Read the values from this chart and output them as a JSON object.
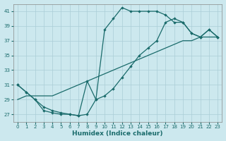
{
  "xlabel": "Humidex (Indice chaleur)",
  "background_color": "#cce8ee",
  "line_color": "#1a6b6b",
  "grid_color": "#aacdd6",
  "ylim": [
    26,
    42
  ],
  "xlim": [
    -0.5,
    23.5
  ],
  "yticks": [
    27,
    29,
    31,
    33,
    35,
    37,
    39,
    41
  ],
  "xticks": [
    0,
    1,
    2,
    3,
    4,
    5,
    6,
    7,
    8,
    9,
    10,
    11,
    12,
    13,
    14,
    15,
    16,
    17,
    18,
    19,
    20,
    21,
    22,
    23
  ],
  "line1_x": [
    0,
    1,
    2,
    3,
    4,
    5,
    6,
    7,
    8,
    9,
    10,
    11,
    12,
    13,
    14,
    15,
    16,
    17,
    18,
    19,
    20,
    21,
    22,
    23
  ],
  "line1_y": [
    31,
    30,
    29,
    28,
    27.5,
    27.2,
    27.0,
    26.8,
    27.0,
    29.0,
    38.5,
    40.0,
    41.5,
    41.0,
    41.0,
    41.0,
    41.0,
    40.5,
    39.5,
    39.5,
    38.0,
    37.5,
    38.5,
    37.5
  ],
  "line2_x": [
    0,
    1,
    2,
    3,
    4,
    5,
    6,
    7,
    8,
    9,
    10,
    11,
    12,
    13,
    14,
    15,
    16,
    17,
    18,
    19,
    20,
    21,
    22,
    23
  ],
  "line2_y": [
    29.0,
    29.5,
    29.5,
    29.5,
    29.5,
    30.0,
    30.5,
    31.0,
    31.5,
    32.0,
    32.5,
    33.0,
    33.5,
    34.0,
    34.5,
    35.0,
    35.5,
    36.0,
    36.5,
    37.0,
    37.0,
    37.5,
    37.5,
    37.5
  ],
  "line3_x": [
    0,
    1,
    2,
    3,
    4,
    5,
    6,
    7,
    8,
    9,
    10,
    11,
    12,
    13,
    14,
    15,
    16,
    17,
    18,
    19,
    20,
    21,
    22,
    23
  ],
  "line3_y": [
    31,
    30,
    29,
    27.5,
    27.2,
    27.0,
    27.0,
    26.8,
    31.5,
    29.0,
    29.5,
    30.5,
    32.0,
    33.5,
    35.0,
    36.0,
    37.0,
    39.5,
    40.0,
    39.5,
    38.0,
    37.5,
    38.5,
    37.5
  ]
}
